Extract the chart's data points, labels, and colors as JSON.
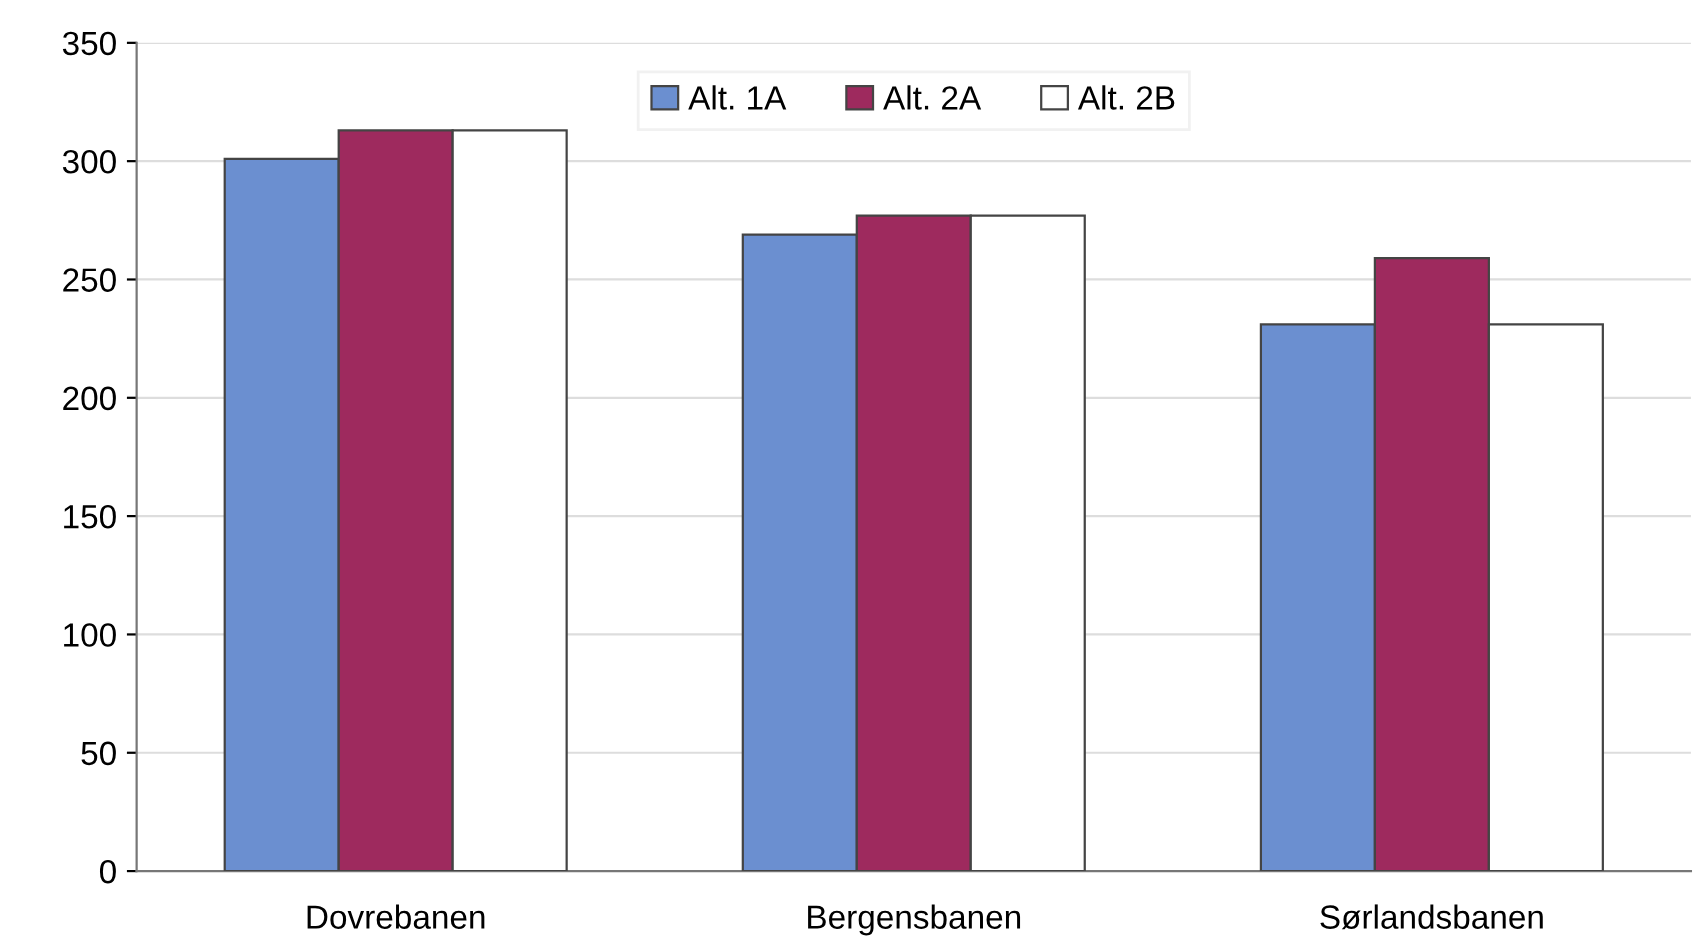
{
  "chart_data": {
    "type": "bar",
    "categories": [
      "Dovrebanen",
      "Bergensbanen",
      "Sørlandsbanen"
    ],
    "series": [
      {
        "name": "Alt. 1A",
        "color": "#6b8fd0",
        "values": [
          301,
          269,
          231
        ]
      },
      {
        "name": "Alt. 2A",
        "color": "#9e2a5e",
        "values": [
          313,
          277,
          259
        ]
      },
      {
        "name": "Alt. 2B",
        "color": "#ffffff",
        "values": [
          313,
          277,
          231
        ]
      }
    ],
    "ylim": [
      0,
      350
    ],
    "yticks": [
      0,
      50,
      100,
      150,
      200,
      250,
      300,
      350
    ],
    "grid": "y",
    "legend": "top"
  }
}
